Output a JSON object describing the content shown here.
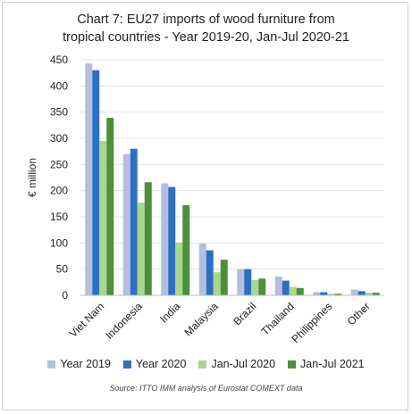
{
  "chart_data": {
    "type": "bar",
    "title_line1": "Chart 7: EU27 imports of wood furniture from",
    "title_line2": "tropical countries - Year 2019-20, Jan-Jul 2020-21",
    "ylabel": "€ million",
    "ylim": [
      0,
      450
    ],
    "yticks": [
      "0",
      "50",
      "100",
      "150",
      "200",
      "250",
      "300",
      "350",
      "400",
      "450"
    ],
    "grid": true,
    "legend_position": "bottom",
    "categories": [
      "Viet Nam",
      "Indonesia",
      "India",
      "Malaysia",
      "Brazil",
      "Thailand",
      "Philippines",
      "Other"
    ],
    "series": [
      {
        "name": "Year 2019",
        "color": "#b4bfe0",
        "values": [
          443,
          270,
          214,
          99,
          50,
          36,
          6,
          11
        ]
      },
      {
        "name": "Year 2020",
        "color": "#2f6fc2",
        "values": [
          430,
          280,
          207,
          86,
          50,
          28,
          6,
          8
        ]
      },
      {
        "name": "Jan-Jul 2020",
        "color": "#a6d88e",
        "values": [
          295,
          177,
          101,
          44,
          29,
          16,
          3,
          5
        ]
      },
      {
        "name": "Jan-Jul 2021",
        "color": "#4e8f3a",
        "values": [
          339,
          216,
          172,
          68,
          32,
          14,
          3,
          5
        ]
      }
    ],
    "source": "Source: ITTO IMM analysis of Eurostat COMEXT data"
  }
}
